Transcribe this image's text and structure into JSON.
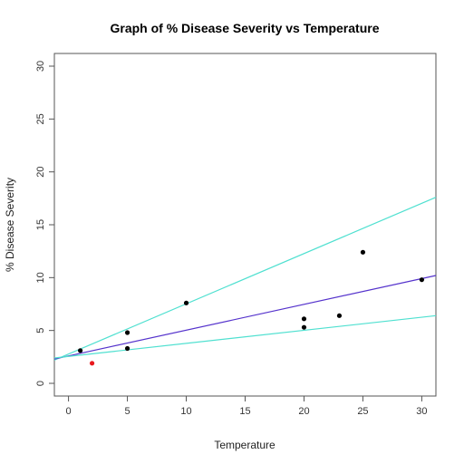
{
  "chart_data": {
    "type": "scatter",
    "title": "Graph of % Disease Severity vs Temperature",
    "xlabel": "Temperature",
    "ylabel": "% Disease Severity",
    "xlim": [
      -1.2,
      31.2
    ],
    "ylim": [
      -1.2,
      31.2
    ],
    "xticks": [
      "0",
      "5",
      "10",
      "15",
      "20",
      "25",
      "30"
    ],
    "yticks": [
      "0",
      "5",
      "10",
      "15",
      "20",
      "25",
      "30"
    ],
    "grid": false,
    "points": [
      {
        "x": 1,
        "y": 3.1,
        "color": "#000000"
      },
      {
        "x": 2,
        "y": 1.9,
        "color": "#e8191e"
      },
      {
        "x": 5,
        "y": 4.8,
        "color": "#000000"
      },
      {
        "x": 5,
        "y": 3.3,
        "color": "#000000"
      },
      {
        "x": 10,
        "y": 7.6,
        "color": "#000000"
      },
      {
        "x": 20,
        "y": 6.1,
        "color": "#000000"
      },
      {
        "x": 20,
        "y": 5.3,
        "color": "#000000"
      },
      {
        "x": 23,
        "y": 6.4,
        "color": "#000000"
      },
      {
        "x": 25,
        "y": 12.4,
        "color": "#000000"
      },
      {
        "x": 30,
        "y": 9.8,
        "color": "#000000"
      }
    ],
    "lines": [
      {
        "x": [
          -1.2,
          31.2
        ],
        "y": [
          2.2,
          17.6
        ],
        "color": "#4fe0d0"
      },
      {
        "x": [
          -1.2,
          31.2
        ],
        "y": [
          2.3,
          10.2
        ],
        "color": "#5533cc"
      },
      {
        "x": [
          -1.2,
          31.2
        ],
        "y": [
          2.4,
          6.4
        ],
        "color": "#4fe0d0"
      }
    ]
  }
}
